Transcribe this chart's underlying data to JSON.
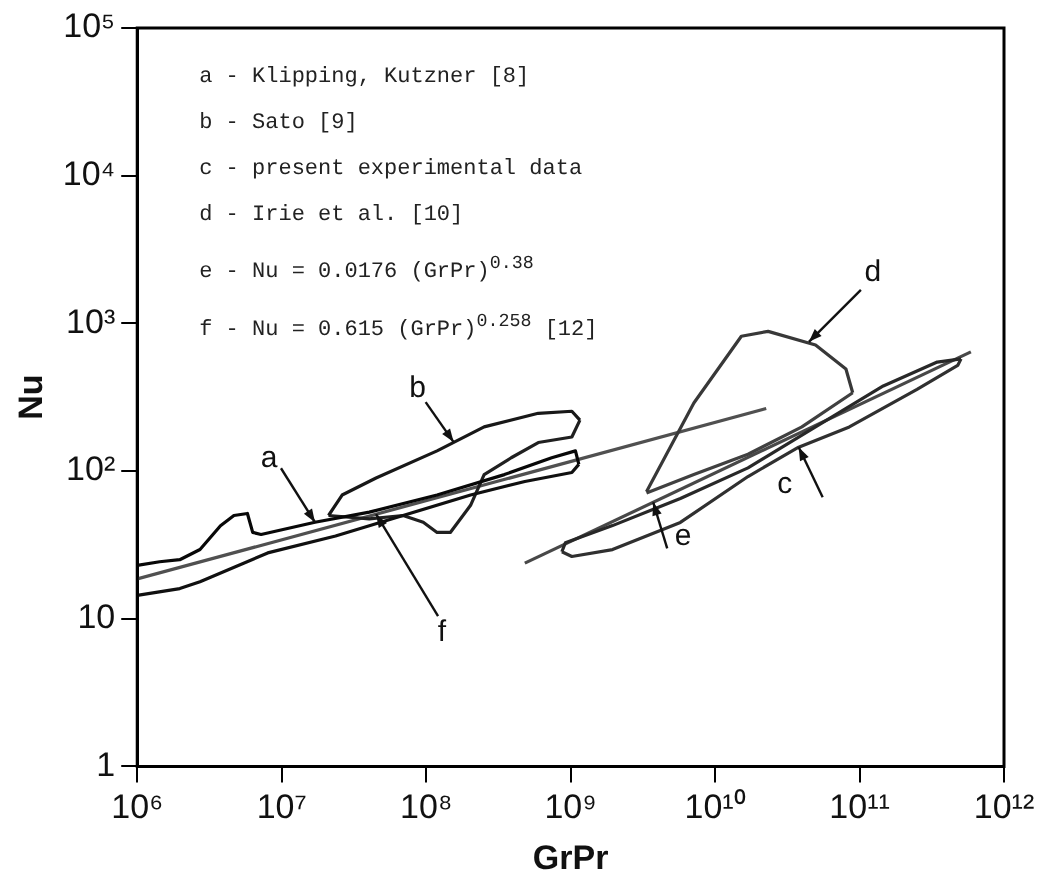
{
  "chart_data": {
    "type": "line",
    "xlabel": "GrPr",
    "ylabel": "Nu",
    "log": "xy",
    "grid": false,
    "legend": false,
    "marker": "none",
    "line_style": "solid",
    "xlim": [
      1000000,
      1000000000000
    ],
    "ylim": [
      1,
      100000
    ],
    "xticks": [
      {
        "value": 1000000,
        "label": "10⁶"
      },
      {
        "value": 10000000,
        "label": "10⁷"
      },
      {
        "value": 100000000,
        "label": "10⁸"
      },
      {
        "value": 1000000000,
        "label": "10⁹"
      },
      {
        "value": 10000000000,
        "label": "10¹⁰"
      },
      {
        "value": 100000000000,
        "label": "10¹¹"
      },
      {
        "value": 1000000000000,
        "label": "10¹²"
      }
    ],
    "yticks": [
      1,
      10,
      {
        "value": 100,
        "label": "10²"
      },
      {
        "value": 1000,
        "label": "10³"
      },
      {
        "value": 10000,
        "label": "10⁴"
      },
      {
        "value": 100000,
        "label": "10⁵"
      }
    ],
    "series": [
      {
        "color": "#080808",
        "x": [
          1000000,
          1430000,
          1970000,
          2720000,
          3770000,
          4670000,
          5790000,
          6300000,
          7200000,
          17000000,
          40400000,
          119000000,
          348000000,
          740000000,
          1080000000,
          1140000000
        ],
        "values": [
          23,
          24.3,
          25.1,
          29.4,
          42.6,
          50,
          51.6,
          38.4,
          37.2,
          45,
          52.7,
          68.8,
          94.6,
          123,
          137,
          111
        ]
      },
      {
        "color": "#101010",
        "x": [
          1000000,
          1970000,
          2720000,
          8000000,
          23600000,
          69200000,
          203000000,
          482000000,
          1020000000,
          1140000000
        ],
        "values": [
          14.4,
          16,
          17.8,
          27.9,
          36.3,
          50,
          68.8,
          85,
          97.7,
          111
        ]
      },
      {
        "color": "#181818",
        "x": [
          21100000,
          26200000,
          45000000,
          119000000,
          252000000,
          597000000,
          1020000000,
          1160000000
        ],
        "values": [
          50,
          68.8,
          89.7,
          137,
          199,
          246,
          254,
          221
        ]
      },
      {
        "color": "#202020",
        "x": [
          21100000,
          40400000,
          69200000,
          95500000,
          119000000,
          147000000,
          203000000,
          252000000,
          388000000,
          597000000,
          1020000000,
          1160000000
        ],
        "values": [
          50,
          47.4,
          50,
          45,
          38.4,
          38.4,
          58.6,
          94.6,
          123,
          156,
          170,
          221
        ]
      },
      {
        "color": "#282828",
        "x": [
          870000000,
          920000000,
          1950000000,
          5750000000,
          16900000000,
          49600000000,
          146000000000,
          345000000000,
          504000000000
        ],
        "values": [
          28.4,
          32.7,
          42.7,
          65.2,
          105,
          199,
          377,
          547,
          575
        ]
      },
      {
        "color": "#303030",
        "x": [
          870000000,
          1020000000,
          1950000000,
          5750000000,
          16900000000,
          37900000000,
          85000000000,
          250000000000,
          478000000000,
          504000000000
        ],
        "values": [
          28.4,
          26.4,
          29.4,
          44.9,
          91.8,
          145,
          199,
          357,
          519,
          575
        ]
      },
      {
        "color": "#383838",
        "x": [
          3350000000,
          7130000000,
          15200000000,
          23300000000,
          49600000000,
          80500000000,
          89700000000
        ],
        "values": [
          72.4,
          289,
          818,
          883,
          713,
          491,
          339
        ]
      },
      {
        "color": "#404040",
        "x": [
          3350000000,
          7130000000,
          16900000000,
          39900000000,
          89700000000
        ],
        "values": [
          71.1,
          94.6,
          130,
          199,
          339
        ]
      },
      {
        "color": "#484848",
        "x": [
          482000000,
          590000000000
        ],
        "values": [
          23.8,
          641
        ]
      },
      {
        "color": "#505050",
        "x": [
          1000000,
          22600000000
        ],
        "values": [
          18.6,
          265
        ]
      }
    ],
    "annotations": [
      "a - Klipping, Kutzner [8]",
      "b - Sato [9]",
      "c - present experimental data",
      "d - Irie et al. [10]",
      "e - Nu = 0.0176 (GrPr)$^{0.38}$",
      "f - Nu = 0.615 (GrPr)$^{0.258}$ [12]",
      {
        "text": "a",
        "x": 17000000,
        "y": 45
      },
      {
        "text": "b",
        "x": 155000000,
        "y": 157
      },
      {
        "text": "c",
        "x": 37900000000,
        "y": 145
      },
      {
        "text": "d",
        "x": 44600000000,
        "y": 750
      },
      {
        "text": "e",
        "x": 3730000000,
        "y": 61.4
      },
      {
        "text": "f",
        "x": 45000000,
        "y": 51
      }
    ]
  }
}
